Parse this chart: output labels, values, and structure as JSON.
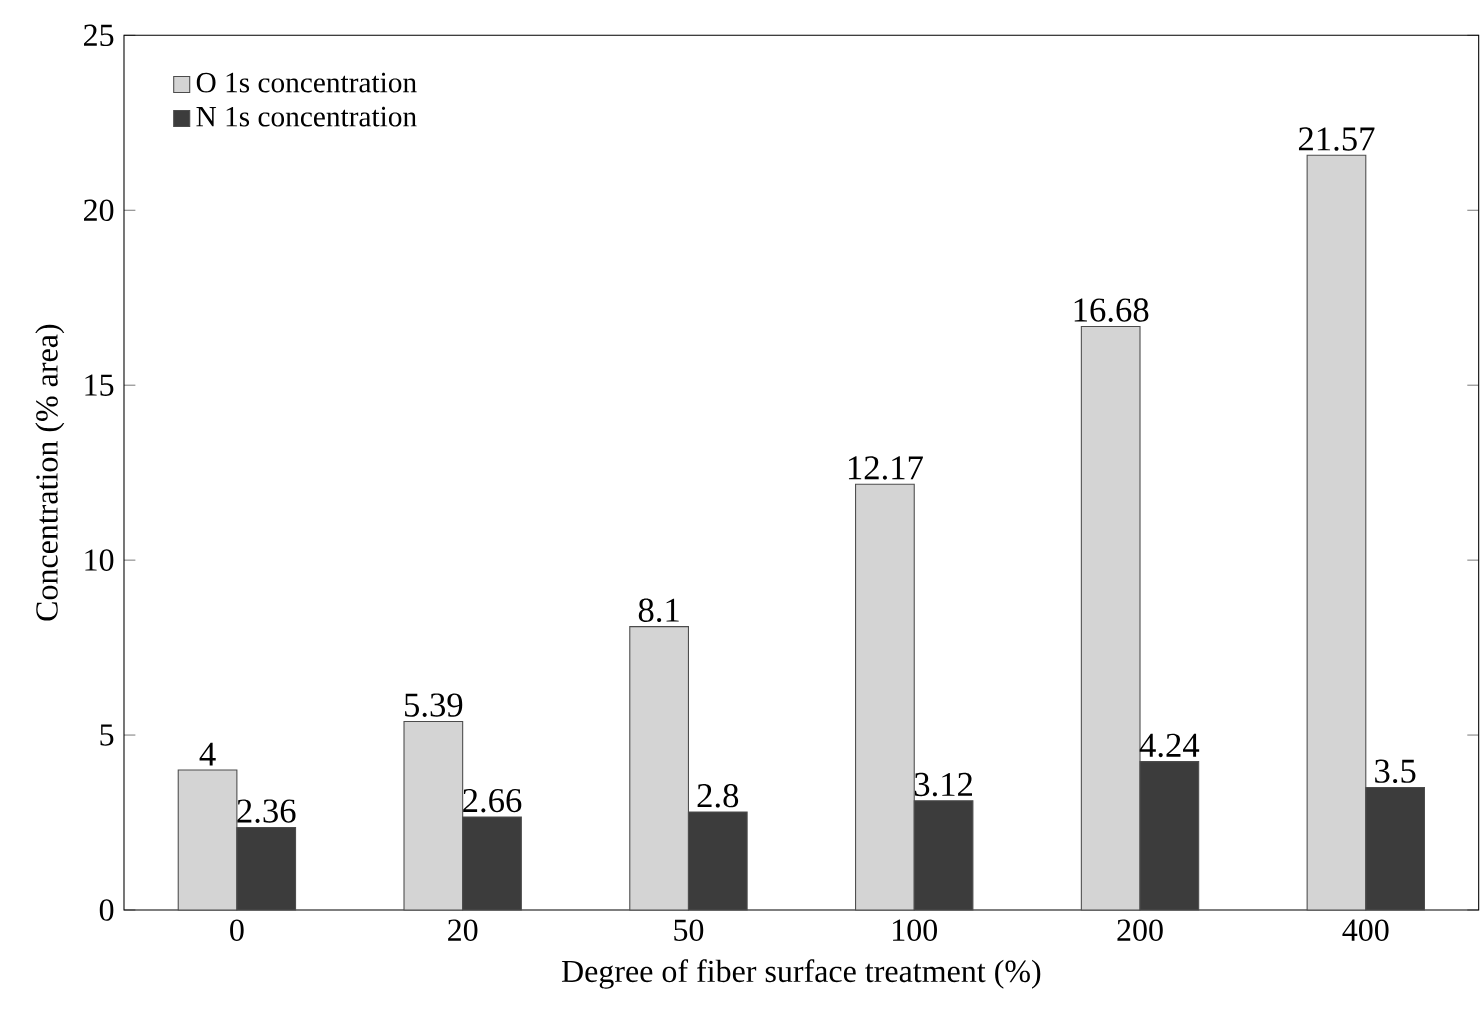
{
  "chart_data": {
    "type": "bar",
    "xlabel": "Degree of fiber surface treatment (%)",
    "ylabel": "Concentration (% area)",
    "categories": [
      "0",
      "20",
      "50",
      "100",
      "200",
      "400"
    ],
    "series": [
      {
        "name": "O 1s concentration",
        "color": "#d4d4d4",
        "values": [
          4,
          5.39,
          8.1,
          12.17,
          16.68,
          21.57
        ]
      },
      {
        "name": "N 1s concentration",
        "color": "#3c3c3c",
        "values": [
          2.36,
          2.66,
          2.8,
          3.12,
          4.24,
          3.5
        ]
      }
    ],
    "ylim": [
      0,
      25
    ],
    "yticks": [
      0,
      5,
      10,
      15,
      20,
      25
    ],
    "data_labels": true,
    "legend": "top left",
    "grid": false
  }
}
